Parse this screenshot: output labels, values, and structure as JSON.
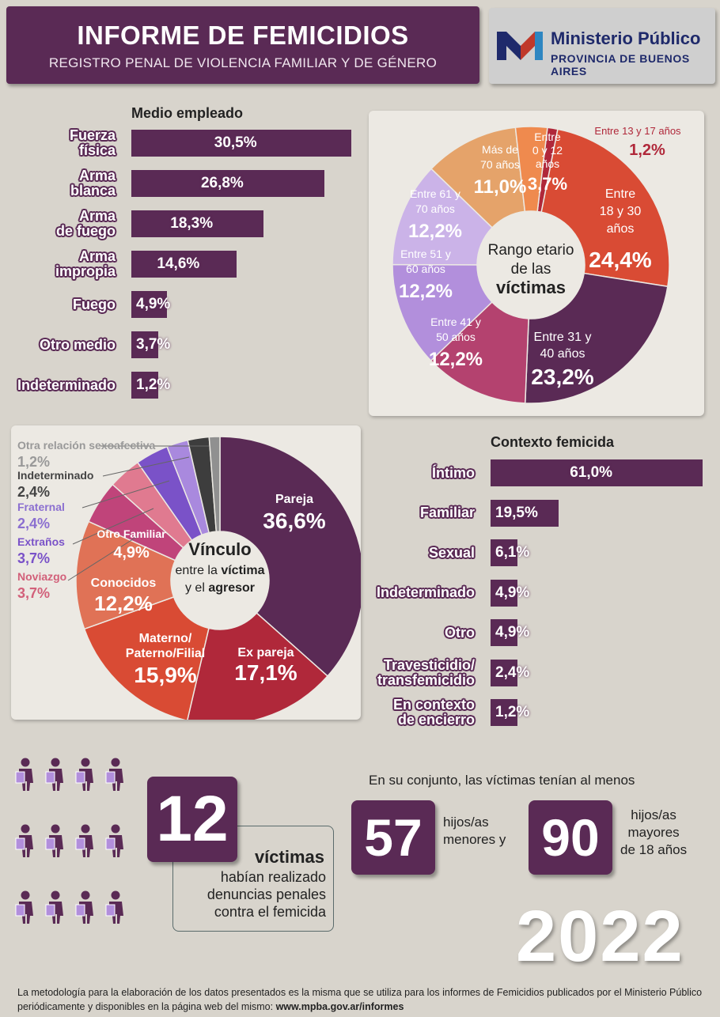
{
  "header": {
    "title": "INFORME DE FEMICIDIOS",
    "subtitle": "REGISTRO PENAL DE VIOLENCIA FAMILIAR Y DE GÉNERO",
    "org_name": "Ministerio Público",
    "org_sub": "PROVINCIA DE BUENOS AIRES"
  },
  "colors": {
    "primary": "#5a2a55",
    "background": "#d8d4cc"
  },
  "chart_data": [
    {
      "type": "bar",
      "title": "Medio empleado",
      "categories": [
        "Fuerza física",
        "Arma blanca",
        "Arma de fuego",
        "Arma impropia",
        "Fuego",
        "Otro medio",
        "Indeterminado"
      ],
      "values": [
        30.5,
        26.8,
        18.3,
        14.6,
        4.9,
        3.7,
        1.2
      ],
      "value_labels": [
        "30,5%",
        "26,8%",
        "18,3%",
        "14,6%",
        "4,9%",
        "3,7%",
        "1,2%"
      ],
      "unit": "%"
    },
    {
      "type": "pie",
      "title": "Rango etario de las víctimas",
      "categories": [
        "Entre 13 y 17 años",
        "Entre 18 y 30 años",
        "Entre 31 y 40 años",
        "Entre 41 y 50 años",
        "Entre 51 y 60 años",
        "Entre 61 y 70 años",
        "Más de 70 años",
        "Entre 0 y 12 años"
      ],
      "values": [
        1.2,
        24.4,
        23.2,
        12.2,
        12.2,
        12.2,
        11.0,
        3.7
      ],
      "value_labels": [
        "1,2%",
        "24,4%",
        "23,2%",
        "12,2%",
        "12,2%",
        "12,2%",
        "11,0%",
        "3,7%"
      ],
      "colors": [
        "#b0283a",
        "#d94b34",
        "#5a2a55",
        "#b4426f",
        "#b28fdc",
        "#cbb3e8",
        "#e5a36a",
        "#ef8a4e"
      ]
    },
    {
      "type": "pie",
      "title": "Vínculo entre la víctima y el agresor",
      "categories": [
        "Pareja",
        "Ex pareja",
        "Materno/Paterno/Filial",
        "Conocidos",
        "Otro Familiar",
        "Noviazgo",
        "Extraños",
        "Fraternal",
        "Indeterminado",
        "Otra relación sexoafectiva"
      ],
      "values": [
        36.6,
        17.1,
        15.9,
        12.2,
        4.9,
        3.7,
        3.7,
        2.4,
        2.4,
        1.2
      ],
      "value_labels": [
        "36,6%",
        "17,1%",
        "15,9%",
        "12,2%",
        "4,9%",
        "3,7%",
        "3,7%",
        "2,4%",
        "2,4%",
        "1,2%"
      ],
      "colors": [
        "#5a2a55",
        "#b0283a",
        "#d94b34",
        "#e07256",
        "#c0447a",
        "#e07a90",
        "#7a52c8",
        "#a989de",
        "#3d3d3d",
        "#909090"
      ]
    },
    {
      "type": "bar",
      "title": "Contexto femicida",
      "categories": [
        "Íntimo",
        "Familiar",
        "Sexual",
        "Indeterminado",
        "Otro",
        "Travesticidio/ transfemicidio",
        "En contexto de encierro"
      ],
      "values": [
        61.0,
        19.5,
        6.1,
        4.9,
        4.9,
        2.4,
        1.2
      ],
      "value_labels": [
        "61,0%",
        "19,5%",
        "6,1%",
        "4,9%",
        "4,9%",
        "2,4%",
        "1,2%"
      ],
      "unit": "%"
    }
  ],
  "age_center": {
    "l1": "Rango etario",
    "l2": "de las",
    "l3": "víctimas"
  },
  "vinc_center": {
    "l1": "Vínculo",
    "l2a": "entre la ",
    "l2b": "víctima",
    "l3a": "y el ",
    "l3b": "agresor"
  },
  "stats": {
    "denuncias_num": "12",
    "denuncias_l1": "víctimas",
    "denuncias_l2": "habían realizado",
    "denuncias_l3": "denuncias penales",
    "denuncias_l4": "contra el femicida",
    "hijos_intro": "En su conjunto, las víctimas tenían al menos",
    "hijos_men_num": "57",
    "hijos_men_l1": "hijos/as",
    "hijos_men_l2": "menores y",
    "hijos_may_num": "90",
    "hijos_may_l1": "hijos/as",
    "hijos_may_l2": "mayores",
    "hijos_may_l3": "de 18 años",
    "year": "2022"
  },
  "footer": {
    "line1": "La metodología para la elaboración de los datos presentados es la misma que se utiliza para los informes de Femicidios publicados por el Ministerio Público",
    "line2a": "periódicamente y disponibles en la página web del mismo: ",
    "line2b": "www.mpba.gov.ar/informes"
  }
}
